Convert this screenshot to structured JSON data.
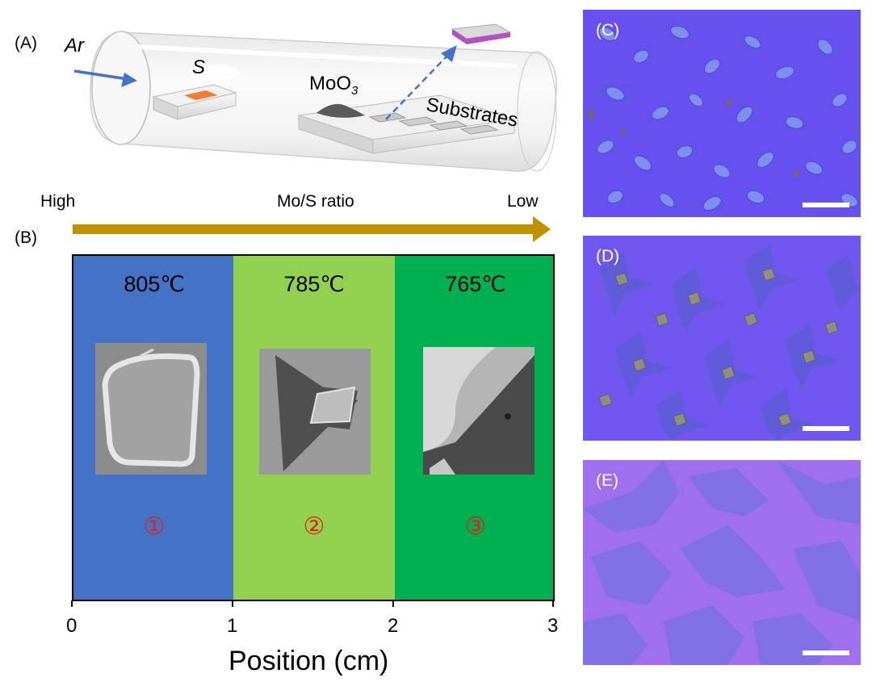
{
  "panel_a": {
    "label": "(A)",
    "gas": "Ar",
    "sulfur": "S",
    "precursor_main": "MoO",
    "precursor_sub": "3",
    "substrates": "Substrates"
  },
  "gradient": {
    "left": "High",
    "center": "Mo/S ratio",
    "right": "Low"
  },
  "panel_b": {
    "label": "(B)",
    "zones": [
      {
        "temperature": "805℃",
        "marker": "①",
        "color": "#4472c4"
      },
      {
        "temperature": "785℃",
        "marker": "②",
        "color": "#92d050"
      },
      {
        "temperature": "765℃",
        "marker": "③",
        "color": "#00b050"
      }
    ],
    "x_ticks": [
      "0",
      "1",
      "2",
      "3"
    ],
    "x_label": "Position (cm)"
  },
  "chart_data": {
    "type": "bar",
    "title": "",
    "xlabel": "Position (cm)",
    "ylabel": "",
    "xlim": [
      0,
      3
    ],
    "regions": [
      {
        "x_start": 0,
        "x_end": 1,
        "temperature_c": 805,
        "marker": "①"
      },
      {
        "x_start": 1,
        "x_end": 2,
        "temperature_c": 785,
        "marker": "②"
      },
      {
        "x_start": 2,
        "x_end": 3,
        "temperature_c": 765,
        "marker": "③"
      }
    ]
  },
  "photos": [
    {
      "label": "(C)"
    },
    {
      "label": "(D)"
    },
    {
      "label": "(E)"
    }
  ],
  "colors": {
    "arrow_gold": "#bf9000",
    "gas_arrow": "#4472c4",
    "marker_red": "#e02020",
    "photo_bg_c": "#6a52f0",
    "photo_bg_d": "#7358f2",
    "photo_bg_e": "#a070f0"
  }
}
